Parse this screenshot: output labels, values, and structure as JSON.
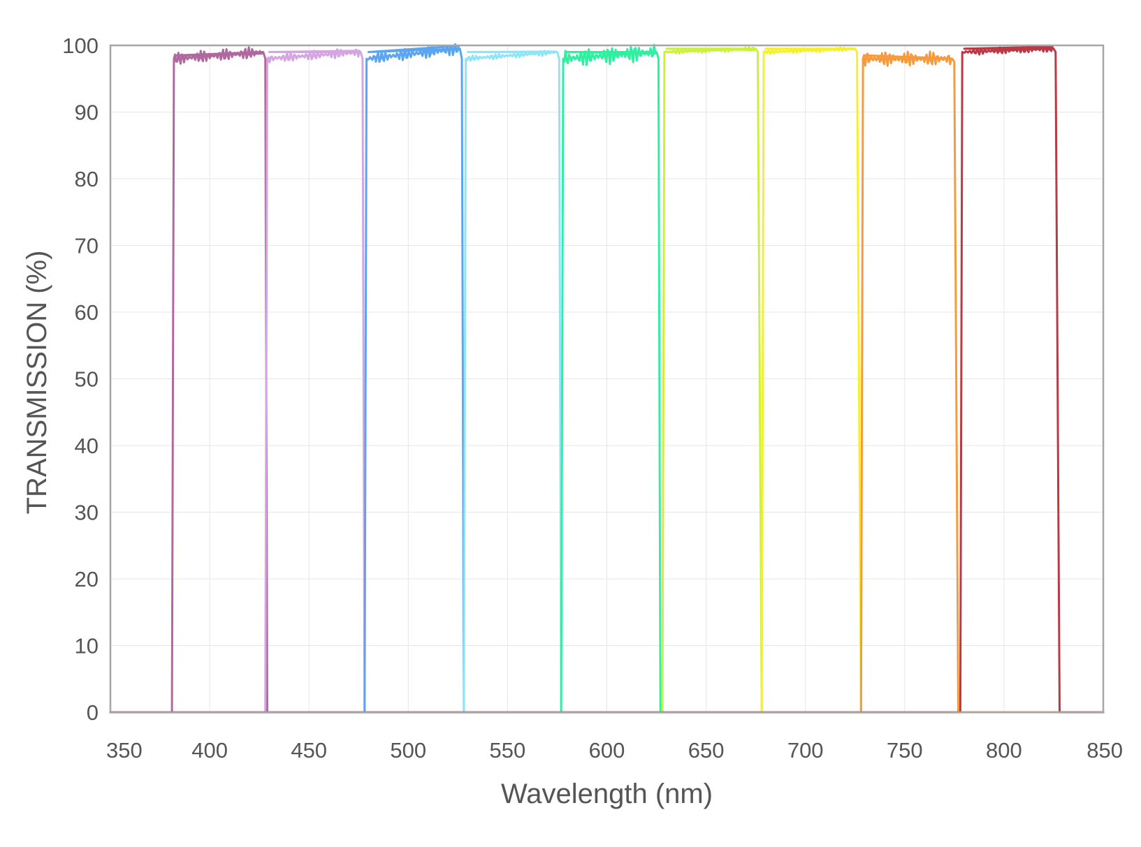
{
  "chart_data": {
    "type": "line",
    "title": "",
    "xlabel": "Wavelength (nm)",
    "ylabel": "TRANSMISSION (%)",
    "xlim": [
      350,
      850
    ],
    "ylim": [
      0,
      100
    ],
    "xticks": [
      350,
      400,
      450,
      500,
      550,
      600,
      650,
      700,
      750,
      800,
      850
    ],
    "yticks": [
      0,
      10,
      20,
      30,
      40,
      50,
      60,
      70,
      80,
      90,
      100
    ],
    "grid": true,
    "legend": "none",
    "series": [
      {
        "color": "#b0699e",
        "x": [
          350,
          381,
          382,
          383,
          427,
          428,
          429,
          850
        ],
        "y": [
          0,
          0,
          98,
          98.5,
          99,
          98,
          0,
          0
        ],
        "ripple": 0.9
      },
      {
        "color": "#d4a5e0",
        "x": [
          350,
          428,
          429,
          430,
          476,
          477,
          478,
          850
        ],
        "y": [
          0,
          0,
          98,
          99,
          99,
          98,
          0,
          0
        ],
        "ripple": 0.7
      },
      {
        "color": "#5aa4f0",
        "x": [
          350,
          478,
          479,
          480,
          526,
          527,
          528,
          850
        ],
        "y": [
          0,
          0,
          98,
          99,
          99.5,
          98,
          0,
          0
        ],
        "ripple": 0.9
      },
      {
        "color": "#8ee4f8",
        "x": [
          350,
          528,
          529,
          530,
          575,
          576,
          577,
          850
        ],
        "y": [
          0,
          0,
          98,
          99,
          99,
          98,
          0,
          0
        ],
        "ripple": 0.4
      },
      {
        "color": "#2ef0a0",
        "x": [
          350,
          577,
          578,
          579,
          625,
          626,
          627,
          850
        ],
        "y": [
          0,
          0,
          98,
          99,
          99,
          98,
          0,
          0
        ],
        "ripple": 1.3
      },
      {
        "color": "#ccf03c",
        "x": [
          350,
          628,
          629,
          630,
          675,
          676,
          678,
          850
        ],
        "y": [
          0,
          0,
          99,
          99.5,
          99.5,
          99,
          0,
          0
        ],
        "ripple": 0.3
      },
      {
        "color": "#f6f02a",
        "x": [
          350,
          678,
          679,
          680,
          725,
          726,
          728,
          850
        ],
        "y": [
          0,
          0,
          99,
          99.5,
          99.5,
          99,
          0,
          0
        ],
        "ripple": 0.3
      },
      {
        "color": "#f79a3e",
        "x": [
          350,
          728,
          729,
          730,
          774,
          775,
          777,
          850
        ],
        "y": [
          0,
          0,
          98,
          98.5,
          98,
          97.5,
          0,
          0
        ],
        "ripple": 1.1
      },
      {
        "color": "#b83a45",
        "x": [
          350,
          778,
          779,
          780,
          825,
          826,
          828,
          850
        ],
        "y": [
          0,
          0,
          99,
          99.5,
          99.5,
          99,
          0,
          0
        ],
        "ripple": 0.5
      }
    ]
  }
}
